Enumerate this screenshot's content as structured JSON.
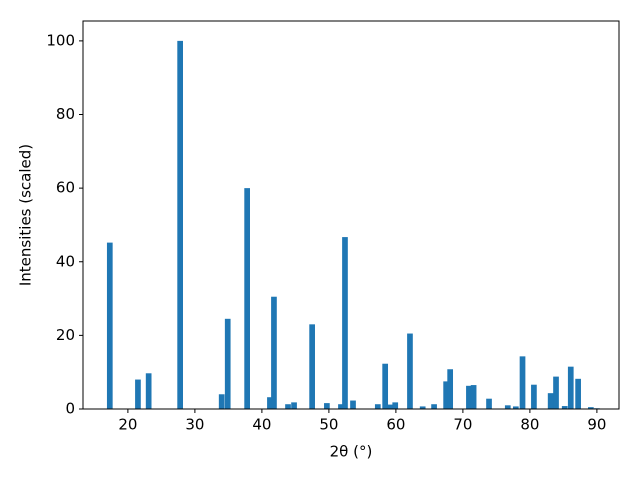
{
  "chart_data": {
    "type": "bar",
    "xlabel": "2θ (°)",
    "ylabel": "Intensities (scaled)",
    "color": "#1f77b4",
    "x": [
      17.3,
      21.5,
      23.1,
      27.8,
      34.0,
      34.9,
      37.8,
      41.2,
      41.8,
      43.9,
      44.8,
      47.5,
      49.7,
      51.8,
      52.4,
      53.6,
      57.3,
      58.4,
      59.1,
      59.9,
      62.1,
      64.0,
      65.7,
      67.5,
      68.1,
      70.9,
      71.6,
      73.9,
      76.7,
      77.9,
      78.9,
      80.6,
      83.1,
      83.9,
      85.2,
      86.1,
      87.2,
      89.1,
      90.0
    ],
    "values": [
      45.2,
      8,
      9.7,
      100,
      4,
      24.5,
      60,
      3.2,
      30.5,
      1.3,
      1.8,
      23,
      1.6,
      1.3,
      46.7,
      2.3,
      1.3,
      12.3,
      1.2,
      1.8,
      20.5,
      0.7,
      1.3,
      7.5,
      10.8,
      6.3,
      6.5,
      2.8,
      1,
      0.7,
      14.3,
      6.6,
      4.3,
      8.8,
      0.8,
      11.5,
      8.2,
      0.5,
      0.2
    ],
    "xlim": [
      13.3,
      93.3
    ],
    "xticks": [
      20,
      30,
      40,
      50,
      60,
      70,
      80,
      90
    ],
    "ylim": [
      0,
      105.4
    ],
    "yticks": [
      0,
      20,
      40,
      60,
      80,
      100
    ]
  }
}
